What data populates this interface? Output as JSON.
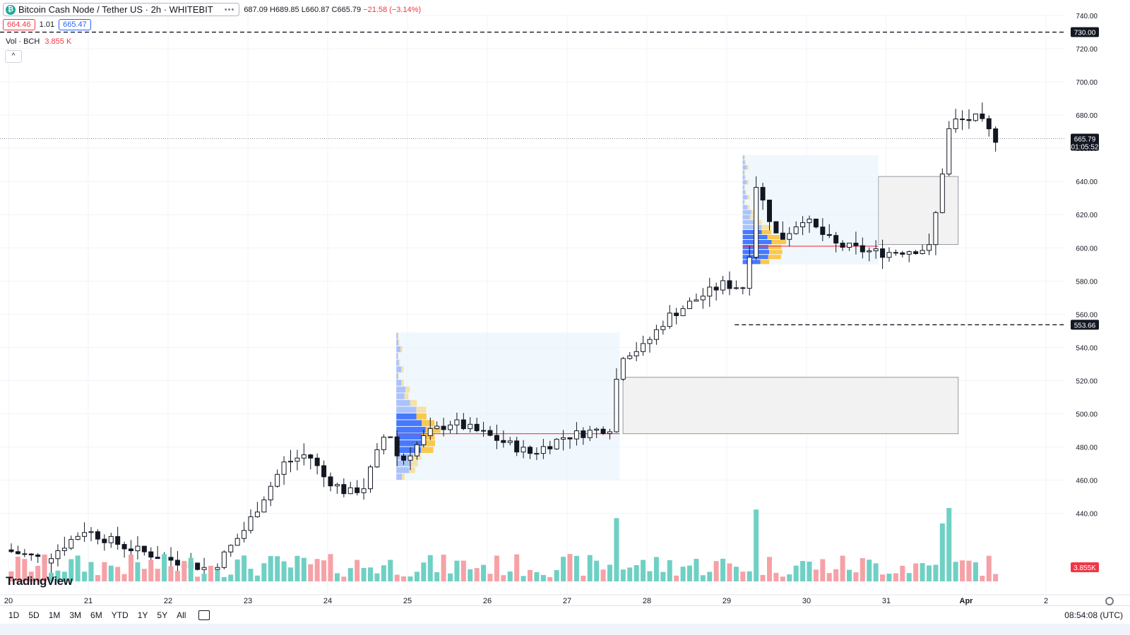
{
  "header": {
    "symbol_title": "Bitcoin Cash Node / Tether US · 2h · WHITEBIT",
    "coin_glyph": "₿",
    "more_dots": "•••",
    "ohlc_open": "687.09",
    "ohlc_high": "H689.85",
    "ohlc_low": "L660.87",
    "ohlc_close": "C665.79",
    "ohlc_change": "−21.58 (−3.14%)"
  },
  "trade": {
    "sell_price": "664.46",
    "spread": "1.01",
    "buy_price": "665.47"
  },
  "volume_legend": {
    "label": "Vol · BCH",
    "value": "3.855 K"
  },
  "logo": "TradingView",
  "bottom_bar": {
    "ranges": [
      "1D",
      "5D",
      "1M",
      "3M",
      "6M",
      "YTD",
      "1Y",
      "5Y",
      "All"
    ],
    "clock": "08:54:08 (UTC)"
  },
  "colors": {
    "up": "#26a69a",
    "down": "#f23645",
    "volume_up": "#6fd0c4",
    "volume_down": "#f6a1a6",
    "accent": "#2962ff"
  },
  "chart_data": {
    "type": "candlestick",
    "title": "Bitcoin Cash Node / Tether US · 2h · WHITEBIT",
    "ylabel": "",
    "xlabel": "",
    "ylim": [
      438,
      745
    ],
    "y_ticks": [
      440,
      460,
      480,
      500,
      520,
      540,
      560,
      580,
      600,
      620,
      640,
      660,
      680,
      700,
      720,
      740
    ],
    "x_ticks": [
      "20",
      "21",
      "22",
      "23",
      "24",
      "25",
      "26",
      "27",
      "28",
      "29",
      "30",
      "31",
      "Apr",
      "2"
    ],
    "grid": true,
    "price_labels": [
      {
        "text": "730.00",
        "value": 730,
        "style": "dashed-line"
      },
      {
        "text": "553.66",
        "value": 553.66,
        "style": "dashed-line"
      },
      {
        "text": "665.79",
        "subtext": "01:05:52",
        "value": 665.79,
        "style": "last-price"
      }
    ],
    "volume_label": "3.855K",
    "boxes": [
      {
        "kind": "zone",
        "price_from": 602,
        "price_to": 643,
        "from_day": 30.9,
        "to_day": 31.9
      },
      {
        "kind": "zone",
        "price_from": 488,
        "price_to": 522,
        "from_day": 27.7,
        "to_day": 31.9
      },
      {
        "kind": "volume-profile",
        "price_from": 460,
        "price_to": 549,
        "from_day": 24.86,
        "to_day": 27.66,
        "poc": 488
      },
      {
        "kind": "volume-profile",
        "price_from": 590,
        "price_to": 656,
        "from_day": 29.2,
        "to_day": 30.9,
        "poc": 601
      }
    ],
    "candles_ohlc_sample": [
      {
        "t": "Mar 24",
        "o": 452,
        "h": 456,
        "l": 444,
        "c": 451
      },
      {
        "t": "Mar 24",
        "o": 454,
        "h": 500,
        "l": 452,
        "c": 497
      },
      {
        "t": "Mar 25",
        "o": 462,
        "h": 497,
        "l": 460,
        "c": 490
      },
      {
        "t": "Mar 27",
        "o": 494,
        "h": 552,
        "l": 488,
        "c": 533
      },
      {
        "t": "Mar 28",
        "o": 532,
        "h": 567,
        "l": 528,
        "c": 565
      },
      {
        "t": "Mar 29",
        "o": 577,
        "h": 600,
        "l": 570,
        "c": 597
      },
      {
        "t": "Mar 29",
        "o": 597,
        "h": 643,
        "l": 594,
        "c": 638
      },
      {
        "t": "Mar 30",
        "o": 638,
        "h": 640,
        "l": 604,
        "c": 608
      },
      {
        "t": "Mar 31",
        "o": 601,
        "h": 605,
        "l": 592,
        "c": 598
      },
      {
        "t": "Apr 1",
        "o": 604,
        "h": 656,
        "l": 602,
        "c": 654
      },
      {
        "t": "Apr 1",
        "o": 654,
        "h": 693,
        "l": 652,
        "c": 678
      },
      {
        "t": "Apr 1",
        "o": 687.09,
        "h": 689.85,
        "l": 660.87,
        "c": 665.79
      }
    ]
  }
}
